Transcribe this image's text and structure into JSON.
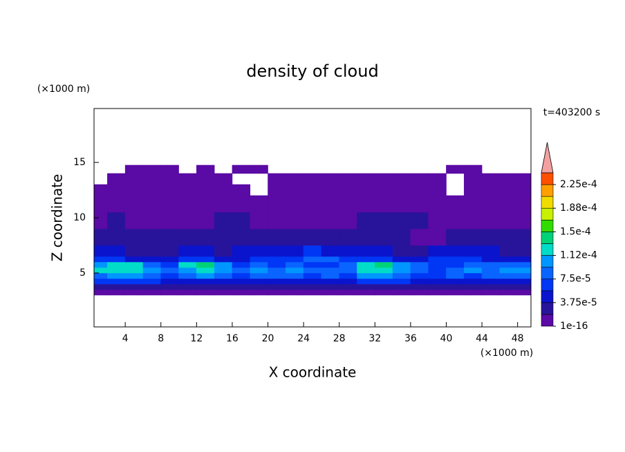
{
  "chart_data": {
    "type": "contour",
    "title": "density of cloud",
    "subtitle": "t=403200 s",
    "x_label": "X coordinate",
    "y_label": "Z coordinate",
    "x_unit": "(×1000 m)",
    "y_unit": "(×1000 m)",
    "xlim": [
      0.5,
      49.5
    ],
    "ylim": [
      0.125,
      19.875
    ],
    "xticks": [
      4,
      8,
      12,
      16,
      20,
      24,
      28,
      32,
      36,
      40,
      44,
      48
    ],
    "yticks": [
      5,
      10,
      15
    ],
    "xbins": [
      0.5,
      2,
      4,
      6,
      8,
      10,
      12,
      14,
      16,
      18,
      20,
      22,
      24,
      26,
      28,
      30,
      32,
      34,
      36,
      38,
      40,
      42,
      44,
      46,
      48,
      49.5
    ],
    "ybins": [
      3,
      3.5,
      4,
      4.5,
      5,
      5.5,
      6,
      6.5,
      7.5,
      9,
      10.5,
      12,
      13,
      14,
      14.75
    ],
    "values": [
      [
        1e-05,
        1e-05,
        1e-05,
        1e-05,
        1e-05,
        1e-05,
        1e-05,
        1e-05,
        1e-05,
        1e-05,
        1e-05,
        1e-05,
        1e-05,
        1e-05,
        1e-05,
        1e-05,
        1e-05,
        1e-05,
        1e-05,
        1e-05,
        1e-05,
        1e-05,
        1e-05,
        1e-05,
        1e-05
      ],
      [
        3e-05,
        3e-05,
        3e-05,
        3e-05,
        3e-05,
        3e-05,
        3e-05,
        3e-05,
        3e-05,
        3e-05,
        3e-05,
        3e-05,
        3e-05,
        3e-05,
        3e-05,
        3e-05,
        3e-05,
        3e-05,
        3e-05,
        3e-05,
        3e-05,
        3e-05,
        3e-05,
        3e-05,
        3e-05
      ],
      [
        6e-05,
        6e-05,
        6e-05,
        6e-05,
        5e-05,
        5e-05,
        5e-05,
        5e-05,
        5e-05,
        5e-05,
        5e-05,
        5e-05,
        5e-05,
        5e-05,
        5e-05,
        6e-05,
        6e-05,
        6e-05,
        5e-05,
        5e-05,
        5e-05,
        5e-05,
        5e-05,
        5e-05,
        5e-05
      ],
      [
        8e-05,
        0.00011,
        0.0001,
        8e-05,
        6e-05,
        8e-05,
        0.0001,
        8e-05,
        6e-05,
        8e-05,
        8e-05,
        8e-05,
        6e-05,
        8e-05,
        6e-05,
        0.0001,
        0.00011,
        8e-05,
        6e-05,
        6e-05,
        8e-05,
        6e-05,
        8e-05,
        8e-05,
        8e-05
      ],
      [
        0.00012,
        0.000125,
        0.00012,
        0.00011,
        8e-05,
        0.00011,
        0.000125,
        0.00011,
        8e-05,
        0.0001,
        8e-05,
        0.0001,
        8e-05,
        8e-05,
        8e-05,
        0.00012,
        0.000125,
        0.00011,
        8e-05,
        6e-05,
        8e-05,
        0.0001,
        8e-05,
        0.0001,
        0.00011
      ],
      [
        0.0001,
        0.00012,
        0.00012,
        8e-05,
        6e-05,
        0.00012,
        0.00014,
        0.0001,
        6e-05,
        8e-05,
        6e-05,
        8e-05,
        6e-05,
        6e-05,
        8e-05,
        0.00012,
        0.000135,
        0.00011,
        8e-05,
        6e-05,
        6e-05,
        8e-05,
        8e-05,
        8e-05,
        8e-05
      ],
      [
        6e-05,
        6e-05,
        5e-05,
        5e-05,
        5e-05,
        6e-05,
        6e-05,
        5e-05,
        5e-05,
        6e-05,
        6e-05,
        6e-05,
        8e-05,
        8e-05,
        6e-05,
        6e-05,
        6e-05,
        5e-05,
        5e-05,
        6e-05,
        6e-05,
        6e-05,
        5e-05,
        5e-05,
        5e-05
      ],
      [
        5e-05,
        5e-05,
        3e-05,
        3e-05,
        3e-05,
        5e-05,
        5e-05,
        3e-05,
        5e-05,
        5e-05,
        5e-05,
        5e-05,
        6e-05,
        5e-05,
        5e-05,
        5e-05,
        5e-05,
        3e-05,
        3e-05,
        5e-05,
        5e-05,
        5e-05,
        5e-05,
        3e-05,
        3e-05
      ],
      [
        3e-05,
        3e-05,
        3e-05,
        3e-05,
        3e-05,
        3e-05,
        3e-05,
        3e-05,
        3e-05,
        3e-05,
        3e-05,
        3e-05,
        3e-05,
        3e-05,
        3e-05,
        3e-05,
        3e-05,
        3e-05,
        1e-05,
        1e-05,
        3e-05,
        3e-05,
        3e-05,
        3e-05,
        3e-05
      ],
      [
        1e-05,
        3e-05,
        1e-05,
        1e-05,
        1e-05,
        1e-05,
        1e-05,
        3e-05,
        3e-05,
        1e-05,
        1e-05,
        1e-05,
        1e-05,
        1e-05,
        1e-05,
        3e-05,
        3e-05,
        3e-05,
        3e-05,
        1e-05,
        1e-05,
        1e-05,
        1e-05,
        1e-05,
        1e-05
      ],
      [
        1e-05,
        1e-05,
        1e-05,
        1e-05,
        1e-05,
        1e-05,
        1e-05,
        1e-05,
        1e-05,
        1e-05,
        1e-05,
        1e-05,
        1e-05,
        1e-05,
        1e-05,
        1e-05,
        1e-05,
        1e-05,
        1e-05,
        1e-05,
        1e-05,
        1e-05,
        1e-05,
        1e-05,
        1e-05
      ],
      [
        1e-05,
        1e-05,
        1e-05,
        1e-05,
        1e-05,
        1e-05,
        1e-05,
        1e-05,
        1e-05,
        null,
        1e-05,
        1e-05,
        1e-05,
        1e-05,
        1e-05,
        1e-05,
        1e-05,
        1e-05,
        1e-05,
        1e-05,
        null,
        1e-05,
        1e-05,
        1e-05,
        1e-05
      ],
      [
        null,
        1e-05,
        1e-05,
        1e-05,
        1e-05,
        1e-05,
        1e-05,
        1e-05,
        null,
        null,
        1e-05,
        1e-05,
        1e-05,
        1e-05,
        1e-05,
        1e-05,
        1e-05,
        1e-05,
        1e-05,
        1e-05,
        null,
        1e-05,
        1e-05,
        1e-05,
        1e-05
      ],
      [
        null,
        null,
        1e-05,
        1e-05,
        1e-05,
        null,
        1e-05,
        null,
        1e-05,
        1e-05,
        null,
        null,
        null,
        null,
        null,
        null,
        null,
        null,
        null,
        null,
        1e-05,
        1e-05,
        null,
        null,
        null
      ]
    ],
    "colorbar": {
      "levels": [
        1e-16,
        1.875e-05,
        3.75e-05,
        5.625e-05,
        7.5e-05,
        9.375e-05,
        0.0001125,
        0.00013125,
        0.00015,
        0.00016875,
        0.0001875,
        0.00020625,
        0.000225,
        0.00024375
      ],
      "colors": [
        "#5a0aa5",
        "#28149b",
        "#0a14cd",
        "#0037f5",
        "#0a64ff",
        "#0096ff",
        "#00dcc8",
        "#00d278",
        "#32dc00",
        "#c8f000",
        "#f0dc00",
        "#ffa000",
        "#ff5000",
        "#f4a0a0"
      ],
      "ticks": [
        {
          "value": 1e-16,
          "label": "1e-16"
        },
        {
          "value": 3.75e-05,
          "label": "3.75e-5"
        },
        {
          "value": 7.5e-05,
          "label": "7.5e-5"
        },
        {
          "value": 0.0001125,
          "label": "1.12e-4"
        },
        {
          "value": 0.00015,
          "label": "1.5e-4"
        },
        {
          "value": 0.0001875,
          "label": "1.88e-4"
        },
        {
          "value": 0.000225,
          "label": "2.25e-4"
        }
      ]
    }
  }
}
